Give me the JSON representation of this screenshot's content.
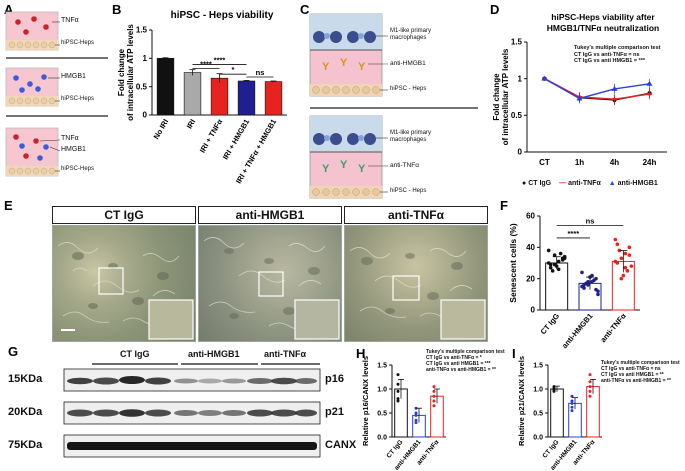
{
  "panels": {
    "A": {
      "letter": "A",
      "wells": [
        {
          "labels": [
            "TNFα",
            "hiPSC-Heps"
          ]
        },
        {
          "labels": [
            "HMGB1",
            "hiPSC-Heps"
          ]
        },
        {
          "labels": [
            "TNFα",
            "HMGB1",
            "hiPSC-Heps"
          ]
        }
      ]
    },
    "B": {
      "letter": "B",
      "significance": [
        "****",
        "****",
        "*",
        "ns"
      ]
    },
    "C": {
      "letter": "C",
      "top_labels": [
        "M1-like primary macrophages",
        "anti-HMGB1",
        "hiPSC - Heps"
      ],
      "bottom_labels": [
        "M1-like primary macrophages",
        "anti-TNFα",
        "hiPSC - Heps"
      ]
    },
    "D": {
      "letter": "D",
      "stats_title": "Tukey's multiple comparison test",
      "stats_lines": [
        "CT IgG vs anti-TNFα = ns",
        "CT IgG vs anti HMGB1 = ***"
      ]
    },
    "E": {
      "letter": "E",
      "titles": [
        "CT IgG",
        "anti-HMGB1",
        "anti-TNFα"
      ]
    },
    "F": {
      "letter": "F",
      "significance": [
        "ns",
        "****"
      ]
    },
    "G": {
      "letter": "G",
      "groups": [
        "CT IgG",
        "anti-HMGB1",
        "anti-TNFα"
      ],
      "bands": [
        {
          "size": "15KDa",
          "name": "p16"
        },
        {
          "size": "20KDa",
          "name": "p21"
        },
        {
          "size": "75KDa",
          "name": "CANX"
        }
      ]
    },
    "H": {
      "letter": "H",
      "stats_title": "Tukey's multiple comparison test",
      "stats_lines": [
        "CT IgG vs anti-TNFα = *",
        "CT IgG vs anti HMGB1 = ***",
        "anti-TNFα vs anti-HMGB1 = **"
      ]
    },
    "I": {
      "letter": "I",
      "stats_title": "Tukey's multiple comparison test",
      "stats_lines": [
        "CT IgG vs anti-TNFα = ns",
        "CT IgG vs anti HMGB1 = **",
        "anti-TNFα vs anti-HMGB1 = **"
      ]
    }
  },
  "colors": {
    "black": "#111111",
    "gray": "#a9a9a9",
    "red": "#e8231f",
    "navy": "#1f1f8f",
    "blue": "#2b3fd6"
  },
  "chart_data": [
    {
      "id": "B",
      "type": "bar",
      "title": "hiPSC - Heps viability",
      "ylabel": "Fold change of intracellular ATP levels",
      "categories": [
        "No IRI",
        "IRI",
        "IRI + TNFα",
        "IRI + HMGB1",
        "IRI + TNFα + HMGB1"
      ],
      "values": [
        1.0,
        0.75,
        0.65,
        0.6,
        0.59
      ],
      "errors": [
        0.01,
        0.05,
        0.08,
        0.01,
        0.01
      ],
      "ylim": [
        0,
        1.5
      ],
      "yticks": [
        "0",
        "0.5",
        "1",
        "1.5"
      ]
    },
    {
      "id": "D",
      "type": "line",
      "title": "hiPSC-Heps viability after HMGB1/TNFα neutralization",
      "ylabel": "Fold change of intracellular ATP levels",
      "x": [
        "CT",
        "1h",
        "4h",
        "24h"
      ],
      "ylim": [
        0,
        1.5
      ],
      "yticks": [
        "0",
        "0.5",
        "1",
        "1.5"
      ],
      "series": [
        {
          "name": "CT IgG",
          "values": [
            1.0,
            0.74,
            0.71,
            0.8
          ]
        },
        {
          "name": "anti-TNFα",
          "values": [
            1.0,
            0.75,
            0.72,
            0.79
          ]
        },
        {
          "name": "anti-HMGB1",
          "values": [
            1.0,
            0.73,
            0.86,
            0.93
          ]
        }
      ]
    },
    {
      "id": "F",
      "type": "scatter",
      "ylabel": "Senescent cells (%)",
      "categories": [
        "CT IgG",
        "anti-HMGB1",
        "anti-TNFα"
      ],
      "means": [
        30,
        17,
        31
      ],
      "errors": [
        4,
        4,
        7
      ],
      "ylim": [
        0,
        60
      ],
      "yticks": [
        "0",
        "20",
        "40",
        "60"
      ],
      "points": [
        [
          38,
          33,
          31,
          29,
          27,
          34,
          36,
          28,
          25,
          30,
          32,
          26,
          35,
          29,
          33
        ],
        [
          24,
          20,
          18,
          16,
          14,
          12,
          19,
          21,
          17,
          15,
          13,
          22,
          18,
          16,
          10
        ],
        [
          45,
          40,
          36,
          33,
          30,
          28,
          25,
          22,
          38,
          31,
          35,
          27,
          20,
          42
        ]
      ]
    },
    {
      "id": "H",
      "type": "bar",
      "ylabel": "Relative p16/CANX levels",
      "categories": [
        "CT IgG",
        "anti-HMGB1",
        "anti-TNFα"
      ],
      "values": [
        1.0,
        0.45,
        0.85
      ],
      "errors": [
        0.2,
        0.15,
        0.15
      ],
      "ylim": [
        0,
        1.5
      ],
      "yticks": [
        "0.0",
        "0.5",
        "1.0",
        "1.5"
      ],
      "points": [
        [
          1.3,
          1.1,
          0.95,
          0.8,
          0.75
        ],
        [
          0.6,
          0.5,
          0.45,
          0.35,
          0.3
        ],
        [
          1.05,
          0.95,
          0.85,
          0.75,
          0.65
        ]
      ]
    },
    {
      "id": "I",
      "type": "bar",
      "ylabel": "Relative p21/CANX levels",
      "categories": [
        "CT IgG",
        "anti-HMGB1",
        "anti-TNFα"
      ],
      "values": [
        1.0,
        0.7,
        1.05
      ],
      "errors": [
        0.06,
        0.12,
        0.15
      ],
      "ylim": [
        0,
        1.5
      ],
      "yticks": [
        "0.0",
        "0.5",
        "1.0",
        "1.5"
      ],
      "points": [
        [
          1.05,
          1.0,
          0.98,
          0.95,
          1.04
        ],
        [
          0.85,
          0.75,
          0.7,
          0.62,
          0.55
        ],
        [
          1.3,
          1.15,
          1.05,
          0.95,
          0.85
        ]
      ]
    }
  ]
}
